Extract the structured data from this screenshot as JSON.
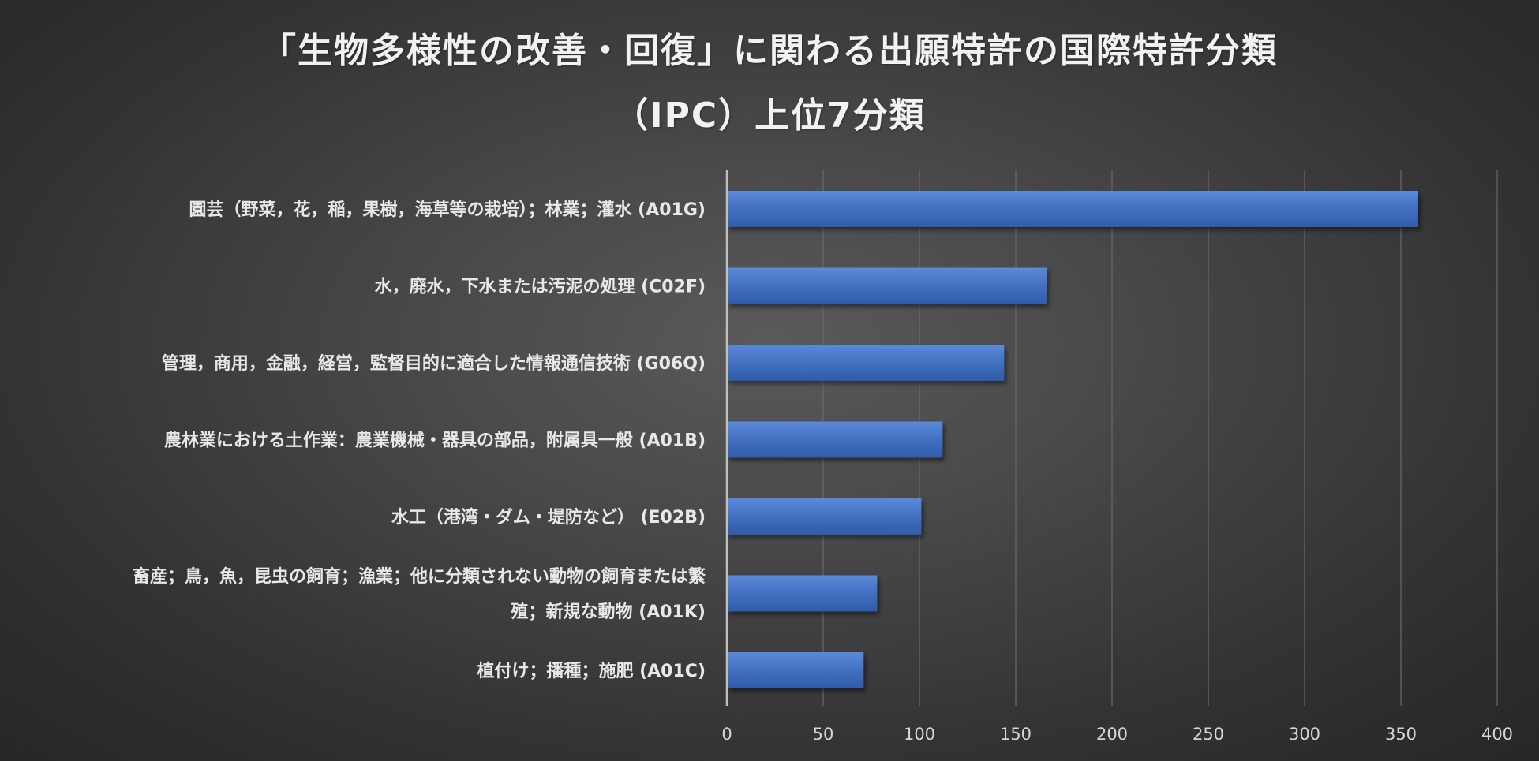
{
  "chart_data": {
    "type": "bar",
    "orientation": "horizontal",
    "title_lines": [
      "「生物多様性の改善・回復」に関わる出願特許の国際特許分類",
      "（IPC）上位7分類"
    ],
    "categories": [
      [
        "園芸（野菜，花，稲，果樹，海草等の栽培）；林業；灌水 (A01G)"
      ],
      [
        "水，廃水，下水または汚泥の処理 (C02F)"
      ],
      [
        "管理，商用，金融，経営，監督目的に適合した情報通信技術 (G06Q)"
      ],
      [
        "農林業における土作業：農業機械・器具の部品，附属具一般 (A01B)"
      ],
      [
        "水工（港湾・ダム・堤防など） (E02B)"
      ],
      [
        "畜産；鳥，魚，昆虫の飼育；漁業；他に分類されない動物の飼育または繁",
        "殖；新規な動物 (A01K)"
      ],
      [
        "植付け；播種；施肥 (A01C)"
      ]
    ],
    "values": [
      359,
      166,
      144,
      112,
      101,
      78,
      71
    ],
    "xlim": [
      0,
      400
    ],
    "xticks": [
      "0",
      "50",
      "100",
      "150",
      "200",
      "250",
      "300",
      "350",
      "400"
    ],
    "grid": "vertical",
    "colors": {
      "bar": "#4472c4",
      "bar_light": "#5b8ad9",
      "bar_dark": "#2f5ba8",
      "grid": "#6a6a6a",
      "axis": "#bfbfbf"
    }
  }
}
